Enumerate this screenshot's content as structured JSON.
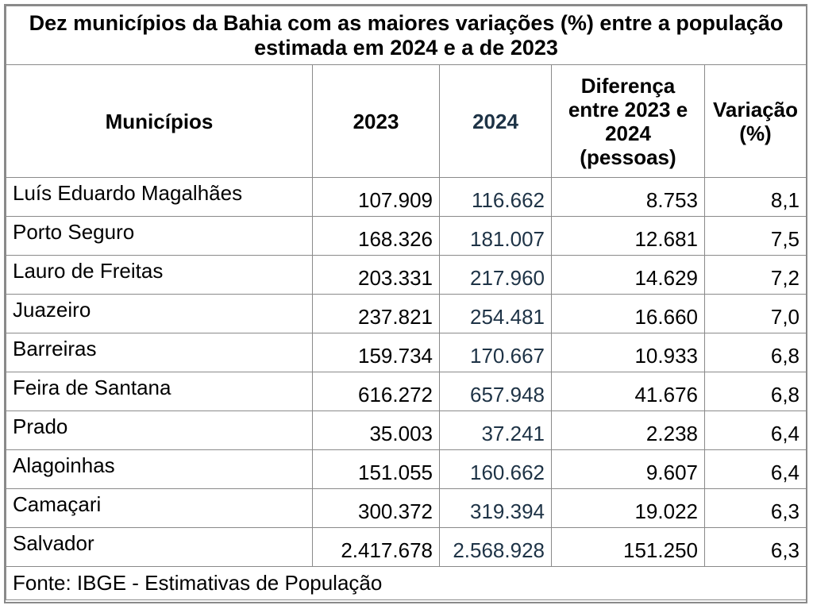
{
  "title": "Dez municípios da Bahia com as maiores variações (%) entre a população estimada em 2024 e a de 2023",
  "headers": {
    "municipios": "Municípios",
    "y2023": "2023",
    "y2024": "2024",
    "diferenca": "Diferença entre 2023 e 2024 (pessoas)",
    "variacao": "Variação (%)"
  },
  "rows": [
    {
      "municipio": "Luís Eduardo Magalhães",
      "p2023": "107.909",
      "p2024": "116.662",
      "diferenca": "8.753",
      "variacao": "8,1"
    },
    {
      "municipio": "Porto Seguro",
      "p2023": "168.326",
      "p2024": "181.007",
      "diferenca": "12.681",
      "variacao": "7,5"
    },
    {
      "municipio": "Lauro de Freitas",
      "p2023": "203.331",
      "p2024": "217.960",
      "diferenca": "14.629",
      "variacao": "7,2"
    },
    {
      "municipio": "Juazeiro",
      "p2023": "237.821",
      "p2024": "254.481",
      "diferenca": "16.660",
      "variacao": "7,0"
    },
    {
      "municipio": "Barreiras",
      "p2023": "159.734",
      "p2024": "170.667",
      "diferenca": "10.933",
      "variacao": "6,8"
    },
    {
      "municipio": "Feira de Santana",
      "p2023": "616.272",
      "p2024": "657.948",
      "diferenca": "41.676",
      "variacao": "6,8"
    },
    {
      "municipio": "Prado",
      "p2023": "35.003",
      "p2024": "37.241",
      "diferenca": "2.238",
      "variacao": "6,4"
    },
    {
      "municipio": "Alagoinhas",
      "p2023": "151.055",
      "p2024": "160.662",
      "diferenca": "9.607",
      "variacao": "6,4"
    },
    {
      "municipio": "Camaçari",
      "p2023": "300.372",
      "p2024": "319.394",
      "diferenca": "19.022",
      "variacao": "6,3"
    },
    {
      "municipio": "Salvador",
      "p2023": "2.417.678",
      "p2024": "2.568.928",
      "diferenca": "151.250",
      "variacao": "6,3"
    }
  ],
  "fonte": "Fonte: IBGE - Estimativas de População",
  "colors": {
    "border": "#8a8a8a",
    "col2024_text": "#1e3346"
  }
}
